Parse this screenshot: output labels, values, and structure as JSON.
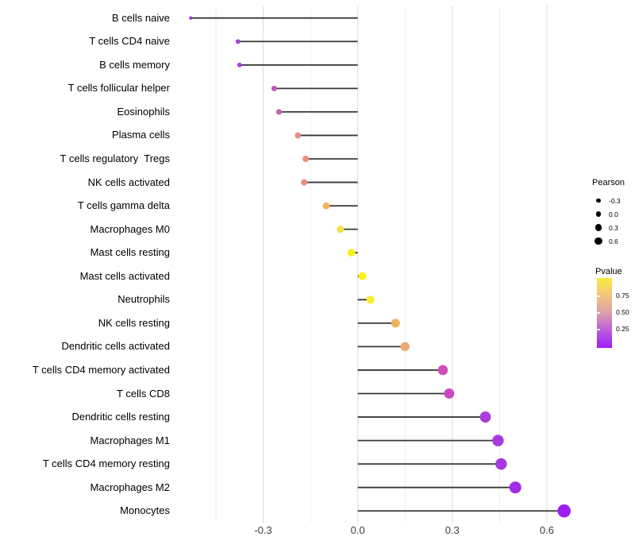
{
  "chart_data": {
    "type": "scatter",
    "variant": "lollipop",
    "title": "",
    "xlabel": "",
    "ylabel": "",
    "x_ticks": [
      -0.3,
      0.0,
      0.3,
      0.6
    ],
    "x_tick_labels": [
      "-0.3",
      "0.0",
      "0.3",
      "0.6"
    ],
    "xlim": [
      -0.59,
      0.71
    ],
    "x_gridlines": [
      -0.45,
      -0.3,
      -0.15,
      0,
      0.15,
      0.3,
      0.45,
      0.6
    ],
    "grid": "vertical-only",
    "size_encoding": "Pearson",
    "color_encoding": "Pvalue",
    "points": [
      {
        "label": "B cells naive",
        "pearson": -0.53,
        "color": "#a734e6"
      },
      {
        "label": "T cells CD4 naive",
        "pearson": -0.38,
        "color": "#ab3eda"
      },
      {
        "label": "B cells memory",
        "pearson": -0.375,
        "color": "#a93bdc"
      },
      {
        "label": "T cells follicular helper",
        "pearson": -0.265,
        "color": "#c254be"
      },
      {
        "label": "Eosinophils",
        "pearson": -0.25,
        "color": "#c75fb3"
      },
      {
        "label": "Plasma cells",
        "pearson": -0.19,
        "color": "#e58e85"
      },
      {
        "label": "T cells regulatory  Tregs",
        "pearson": -0.165,
        "color": "#e6947b"
      },
      {
        "label": "NK cells activated",
        "pearson": -0.17,
        "color": "#e09380"
      },
      {
        "label": "T cells gamma delta",
        "pearson": -0.1,
        "color": "#edb25e"
      },
      {
        "label": "Macrophages M0",
        "pearson": -0.055,
        "color": "#f4de4d"
      },
      {
        "label": "Mast cells resting",
        "pearson": -0.02,
        "color": "#fbf112"
      },
      {
        "label": "Mast cells activated",
        "pearson": 0.015,
        "color": "#fbf112"
      },
      {
        "label": "Neutrophils",
        "pearson": 0.04,
        "color": "#f8ec33"
      },
      {
        "label": "NK cells resting",
        "pearson": 0.12,
        "color": "#f0b25f"
      },
      {
        "label": "Dendritic cells activated",
        "pearson": 0.15,
        "color": "#eda76f"
      },
      {
        "label": "T cells CD4 memory activated",
        "pearson": 0.27,
        "color": "#cd4fb9"
      },
      {
        "label": "T cells CD8",
        "pearson": 0.29,
        "color": "#cc46c0"
      },
      {
        "label": "Dendritic cells resting",
        "pearson": 0.405,
        "color": "#a93eda"
      },
      {
        "label": "Macrophages M1",
        "pearson": 0.445,
        "color": "#a838e0"
      },
      {
        "label": "T cells CD4 memory resting",
        "pearson": 0.455,
        "color": "#a637e1"
      },
      {
        "label": "Macrophages M2",
        "pearson": 0.5,
        "color": "#a02be9"
      },
      {
        "label": "Monocytes",
        "pearson": 0.655,
        "color": "#9c1ff0"
      }
    ]
  },
  "legends": {
    "size": {
      "title": "Pearson",
      "dot_color": "#000000",
      "entries": [
        {
          "label": "-0.3",
          "r": 2.7
        },
        {
          "label": "0.0",
          "r": 3.4
        },
        {
          "label": "0.3",
          "r": 4.1
        },
        {
          "label": "0.6",
          "r": 4.8
        }
      ]
    },
    "color": {
      "title": "Pvalue",
      "gradient_top_to_bottom": [
        "#fbeb3d",
        "#f2c581",
        "#dc9fab",
        "#bb5ddf",
        "#a11bf6"
      ],
      "ticks": [
        {
          "label": "0.75",
          "pos": 0.25
        },
        {
          "label": "0.50",
          "pos": 0.49
        },
        {
          "label": "0.25",
          "pos": 0.73
        }
      ]
    }
  },
  "colors": {
    "stem": "#383838",
    "grid_major": "#e0e0e0",
    "grid_minor": "#eeeeee",
    "axis_text": "#404040",
    "background": "#ffffff"
  }
}
